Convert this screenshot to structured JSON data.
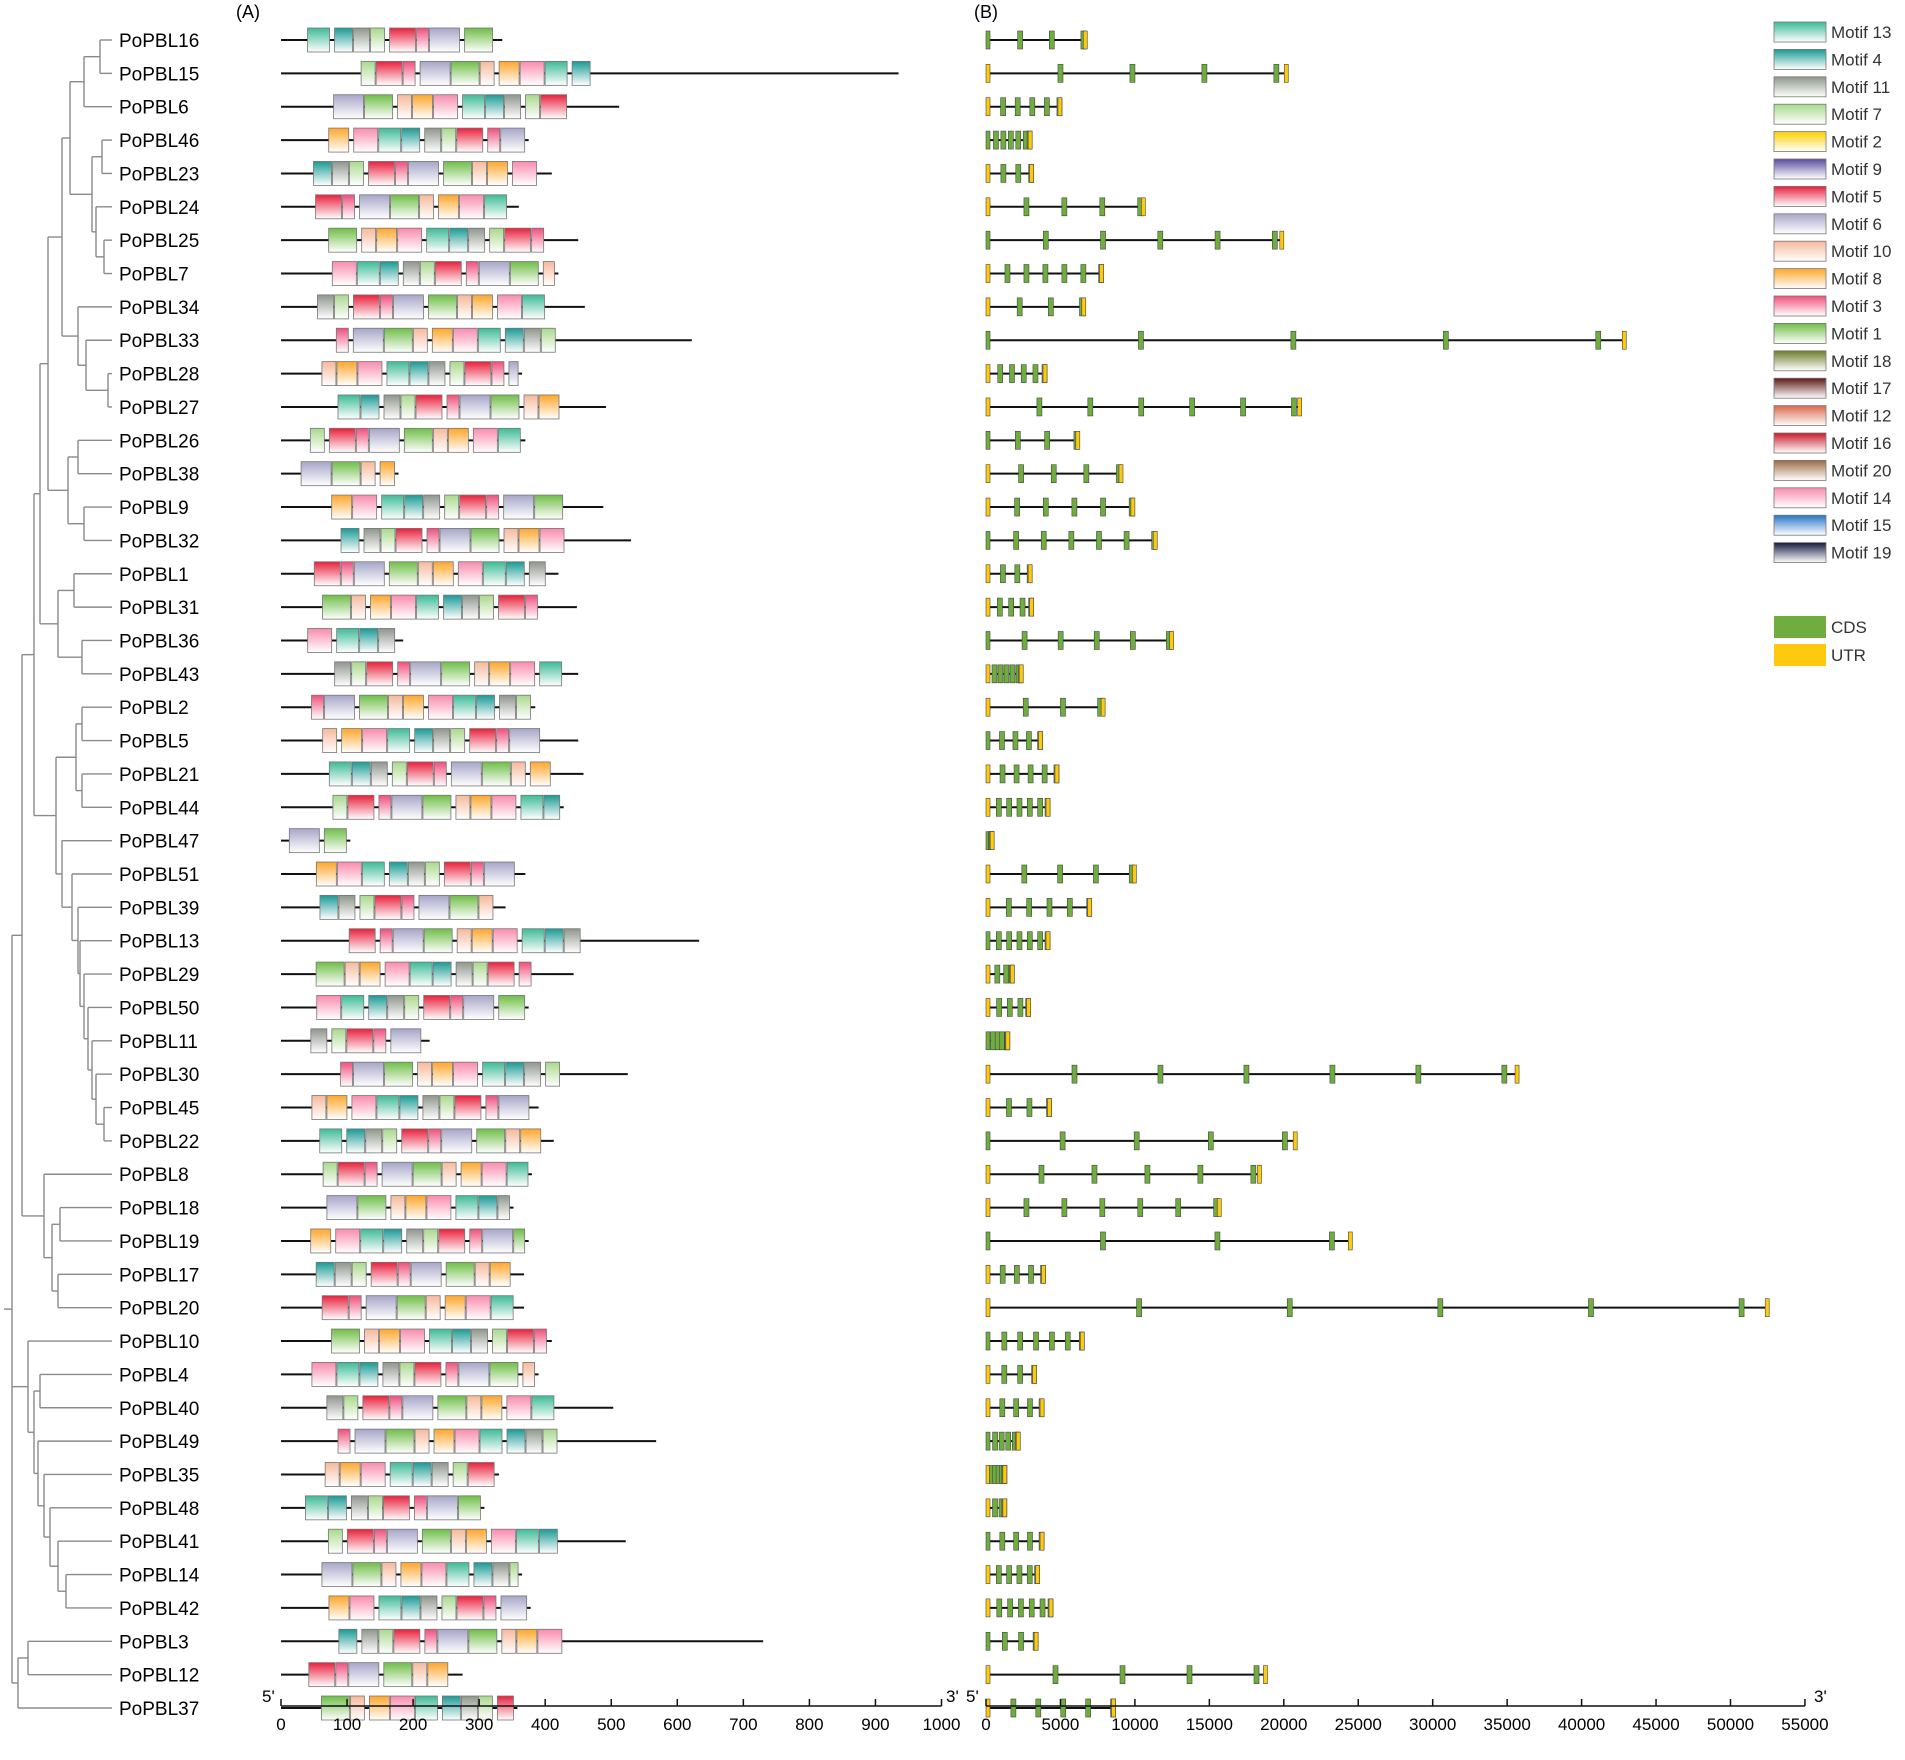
{
  "panels": {
    "a": "(A)",
    "b": "(B)"
  },
  "genes": [
    "PoPBL16",
    "PoPBL15",
    "PoPBL6",
    "PoPBL46",
    "PoPBL23",
    "PoPBL24",
    "PoPBL25",
    "PoPBL7",
    "PoPBL34",
    "PoPBL33",
    "PoPBL28",
    "PoPBL27",
    "PoPBL26",
    "PoPBL38",
    "PoPBL9",
    "PoPBL32",
    "PoPBL1",
    "PoPBL31",
    "PoPBL36",
    "PoPBL43",
    "PoPBL2",
    "PoPBL5",
    "PoPBL21",
    "PoPBL44",
    "PoPBL47",
    "PoPBL51",
    "PoPBL39",
    "PoPBL13",
    "PoPBL29",
    "PoPBL50",
    "PoPBL11",
    "PoPBL30",
    "PoPBL45",
    "PoPBL22",
    "PoPBL8",
    "PoPBL18",
    "PoPBL19",
    "PoPBL17",
    "PoPBL20",
    "PoPBL10",
    "PoPBL4",
    "PoPBL40",
    "PoPBL49",
    "PoPBL35",
    "PoPBL48",
    "PoPBL41",
    "PoPBL14",
    "PoPBL42",
    "PoPBL3",
    "PoPBL12",
    "PoPBL37"
  ],
  "protein_lengths": [
    335,
    935,
    512,
    375,
    410,
    360,
    450,
    420,
    460,
    622,
    365,
    492,
    370,
    178,
    488,
    530,
    420,
    448,
    185,
    450,
    385,
    450,
    458,
    428,
    105,
    370,
    340,
    633,
    443,
    375,
    225,
    525,
    390,
    413,
    380,
    352,
    375,
    368,
    368,
    410,
    390,
    503,
    568,
    330,
    308,
    522,
    365,
    378,
    730,
    275,
    358
  ],
  "gene_lengths": [
    6800,
    20300,
    5100,
    3100,
    3200,
    10700,
    20000,
    7900,
    6700,
    43000,
    4100,
    21200,
    6300,
    9200,
    10000,
    11500,
    3100,
    3200,
    12600,
    2500,
    8000,
    3800,
    4900,
    4300,
    550,
    10100,
    7100,
    4300,
    1900,
    3000,
    1600,
    35800,
    4400,
    20900,
    18500,
    15800,
    24600,
    4000,
    52600,
    6600,
    3400,
    3900,
    2300,
    1400,
    1400,
    3900,
    3600,
    4500,
    3500,
    18900,
    8700
  ],
  "protein_axis": {
    "prime5": "5'",
    "prime3": "3'",
    "ticks": [
      "0",
      "100",
      "200",
      "300",
      "400",
      "500",
      "600",
      "700",
      "800",
      "900",
      "1000"
    ]
  },
  "gene_axis": {
    "prime5": "5'",
    "prime3": "3'",
    "ticks": [
      "0",
      "5000",
      "10000",
      "15000",
      "20000",
      "25000",
      "30000",
      "35000",
      "40000",
      "45000",
      "50000",
      "55000"
    ]
  },
  "motif_legend": [
    {
      "label": "Motif 13",
      "color": "#3dbb97"
    },
    {
      "label": "Motif 4",
      "color": "#1a9a94"
    },
    {
      "label": "Motif 11",
      "color": "#8e968c"
    },
    {
      "label": "Motif 7",
      "color": "#a9d98c"
    },
    {
      "label": "Motif 2",
      "color": "#ffd100"
    },
    {
      "label": "Motif 9",
      "color": "#5a4b9c"
    },
    {
      "label": "Motif 5",
      "color": "#e8203c"
    },
    {
      "label": "Motif 6",
      "color": "#a7a6c9"
    },
    {
      "label": "Motif 10",
      "color": "#f6b99a"
    },
    {
      "label": "Motif 8",
      "color": "#ffa62b"
    },
    {
      "label": "Motif 3",
      "color": "#ef4f7c"
    },
    {
      "label": "Motif 1",
      "color": "#6fbe47"
    },
    {
      "label": "Motif 18",
      "color": "#6b7d2b"
    },
    {
      "label": "Motif 17",
      "color": "#5c1a18"
    },
    {
      "label": "Motif 12",
      "color": "#d9674a"
    },
    {
      "label": "Motif 16",
      "color": "#c81a2a"
    },
    {
      "label": "Motif 20",
      "color": "#9c6b43"
    },
    {
      "label": "Motif 14",
      "color": "#f98cae"
    },
    {
      "label": "Motif 15",
      "color": "#2a74c8"
    },
    {
      "label": "Motif 19",
      "color": "#151a3c"
    }
  ],
  "structure_legend": [
    {
      "label": "CDS",
      "color": "#6fae3e"
    },
    {
      "label": "UTR",
      "color": "#ffc90e"
    }
  ]
}
